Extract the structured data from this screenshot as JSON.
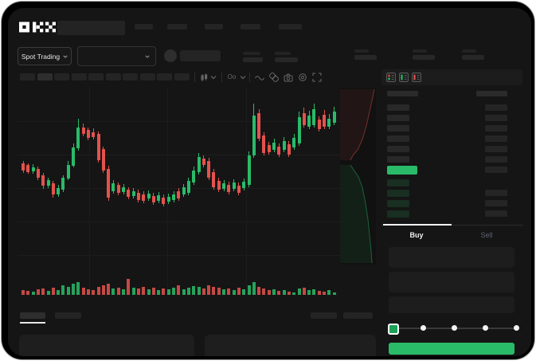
{
  "brand": {
    "name": "OKX"
  },
  "header": {
    "nav_placeholder_count": 5
  },
  "market_selector": {
    "label": "Spot Trading",
    "chevron_icon": "chevron-down-icon"
  },
  "subheader": {
    "stat_pair_count": 5
  },
  "toolbar": {
    "timeframe_slots": 10,
    "active_slot_index": 1,
    "left_icons": [
      "candles",
      "dotchev",
      "oo"
    ],
    "right_icons": [
      "wave",
      "compare",
      "camera",
      "settings",
      "fullscreen"
    ]
  },
  "order_book": {
    "view_icons": [
      "book-both",
      "book-bids",
      "book-asks"
    ],
    "header_cols": 2,
    "ask_rows": 6,
    "bid_rows": 4,
    "bid_amount_rows": 3,
    "current_price_highlight": true
  },
  "trade_panel": {
    "tabs": [
      {
        "label": "Buy",
        "active": true
      },
      {
        "label": "Sell",
        "active": false
      }
    ],
    "input_count": 3,
    "slider": {
      "stops": 5,
      "value_index": 0
    },
    "submit_button_label": ""
  },
  "colors": {
    "up_green": "#2abb69",
    "down_red": "#e2534d",
    "bid_row_green": "rgba(42,187,105,0.16)",
    "accent_button": "#2abb69",
    "active_tab_underline": "#f5f5f5"
  },
  "chart_data": {
    "type": "candlestick",
    "title": "",
    "xlabel": "",
    "ylabel": "",
    "ylim": [
      0,
      150
    ],
    "grid": true,
    "volume_pane": true,
    "candles_ohlc_note": "values in relative price units read from pixels; [open,high,low,close]",
    "candles": [
      [
        67,
        70,
        55,
        58
      ],
      [
        65,
        67,
        54,
        56
      ],
      [
        57,
        66,
        54,
        62
      ],
      [
        60,
        63,
        46,
        49
      ],
      [
        52,
        55,
        35,
        39
      ],
      [
        39,
        49,
        36,
        46
      ],
      [
        42,
        45,
        24,
        28
      ],
      [
        28,
        40,
        25,
        36
      ],
      [
        34,
        52,
        31,
        49
      ],
      [
        48,
        70,
        46,
        65
      ],
      [
        64,
        92,
        62,
        87
      ],
      [
        86,
        123,
        83,
        112
      ],
      [
        112,
        117,
        101,
        104
      ],
      [
        109,
        112,
        96,
        99
      ],
      [
        106,
        111,
        97,
        100
      ],
      [
        104,
        107,
        68,
        71
      ],
      [
        85,
        88,
        55,
        58
      ],
      [
        60,
        64,
        20,
        24
      ],
      [
        32,
        46,
        29,
        42
      ],
      [
        40,
        43,
        27,
        30
      ],
      [
        31,
        41,
        28,
        37
      ],
      [
        34,
        37,
        22,
        25
      ],
      [
        26,
        36,
        23,
        32
      ],
      [
        30,
        34,
        18,
        21
      ],
      [
        28,
        32,
        17,
        20
      ],
      [
        23,
        33,
        20,
        29
      ],
      [
        26,
        30,
        15,
        18
      ],
      [
        20,
        31,
        17,
        27
      ],
      [
        24,
        28,
        13,
        16
      ],
      [
        19,
        29,
        16,
        25
      ],
      [
        21,
        32,
        18,
        28
      ],
      [
        32,
        36,
        20,
        23
      ],
      [
        28,
        41,
        25,
        37
      ],
      [
        30,
        49,
        27,
        45
      ],
      [
        43,
        63,
        40,
        58
      ],
      [
        56,
        80,
        53,
        75
      ],
      [
        73,
        77,
        62,
        65
      ],
      [
        70,
        74,
        46,
        49
      ],
      [
        56,
        60,
        34,
        37
      ],
      [
        45,
        49,
        31,
        34
      ],
      [
        35,
        46,
        32,
        42
      ],
      [
        40,
        44,
        28,
        31
      ],
      [
        35,
        47,
        32,
        43
      ],
      [
        39,
        43,
        27,
        30
      ],
      [
        36,
        48,
        33,
        44
      ],
      [
        40,
        82,
        37,
        77
      ],
      [
        77,
        142,
        74,
        127
      ],
      [
        130,
        135,
        95,
        98
      ],
      [
        102,
        106,
        77,
        80
      ],
      [
        90,
        94,
        78,
        81
      ],
      [
        84,
        98,
        81,
        93
      ],
      [
        88,
        92,
        75,
        78
      ],
      [
        84,
        100,
        81,
        95
      ],
      [
        91,
        95,
        75,
        78
      ],
      [
        87,
        104,
        84,
        99
      ],
      [
        92,
        132,
        89,
        125
      ],
      [
        130,
        137,
        112,
        115
      ],
      [
        113,
        133,
        110,
        127
      ],
      [
        115,
        142,
        112,
        135
      ],
      [
        122,
        126,
        107,
        110
      ],
      [
        128,
        134,
        110,
        113
      ],
      [
        113,
        129,
        110,
        123
      ],
      [
        118,
        138,
        115,
        132
      ]
    ],
    "volumes": [
      6,
      5,
      4,
      7,
      8,
      5,
      9,
      6,
      12,
      10,
      14,
      16,
      9,
      7,
      6,
      10,
      12,
      14,
      8,
      9,
      7,
      20,
      9,
      8,
      10,
      7,
      9,
      6,
      8,
      7,
      9,
      12,
      7,
      9,
      11,
      10,
      8,
      12,
      10,
      9,
      7,
      8,
      6,
      9,
      7,
      12,
      16,
      10,
      8,
      6,
      7,
      5,
      6,
      4,
      3,
      8,
      9,
      6,
      7,
      5,
      4,
      6,
      3
    ],
    "depth_overlay": {
      "type": "area",
      "orientation": "vertical",
      "asks_color": "#e2534d",
      "bids_color": "#2abb69"
    }
  }
}
